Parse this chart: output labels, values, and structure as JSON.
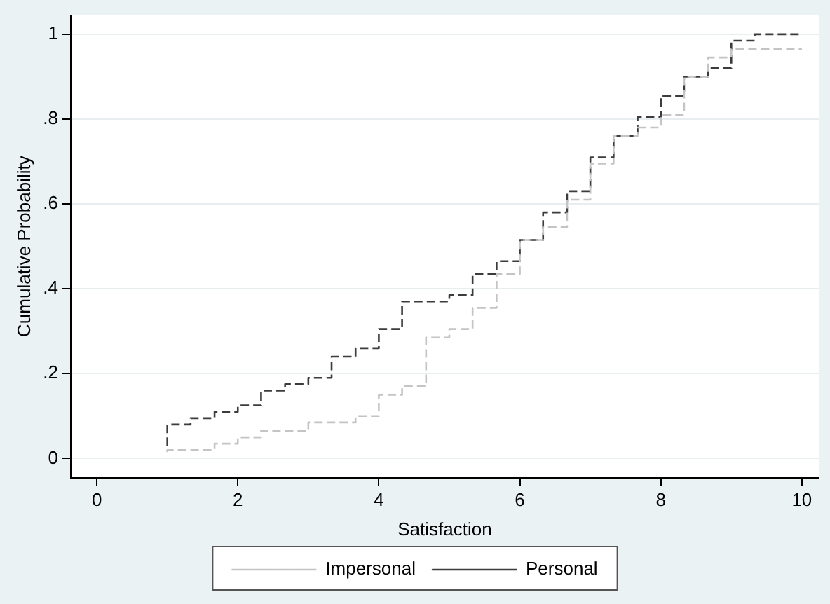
{
  "chart_data": {
    "type": "step",
    "xlabel": "Satisfaction",
    "ylabel": "Cumulative Probability",
    "xlim": [
      -0.37,
      10.24
    ],
    "xticks": [
      0,
      2,
      4,
      6,
      8,
      10
    ],
    "ylim": [
      -0.045,
      1.045
    ],
    "yticks": [
      0,
      {
        "value": 0.2,
        "label": ".2"
      },
      {
        "value": 0.4,
        "label": ".4"
      },
      {
        "value": 0.6,
        "label": ".6"
      },
      {
        "value": 0.8,
        "label": ".8"
      },
      1
    ],
    "grid": "y",
    "legend": "bottom",
    "line_style": "dashed",
    "marker": "none",
    "series": [
      {
        "name": "Impersonal",
        "color": "#c4c4c4",
        "x": [
          1,
          1.67,
          2,
          2.33,
          3,
          3.67,
          4,
          4.33,
          4.67,
          5,
          5.33,
          5.67,
          6,
          6.33,
          6.67,
          7,
          7.33,
          7.67,
          8,
          8.33,
          8.67,
          9,
          9.33,
          10
        ],
        "values": [
          0.015,
          0.02,
          0.035,
          0.05,
          0.065,
          0.085,
          0.1,
          0.15,
          0.17,
          0.285,
          0.305,
          0.355,
          0.435,
          0.515,
          0.545,
          0.61,
          0.695,
          0.76,
          0.78,
          0.81,
          0.9,
          0.945,
          0.965,
          0.965
        ]
      },
      {
        "name": "Personal",
        "color": "#3c3c3c",
        "x": [
          1,
          1.33,
          1.67,
          2,
          2.33,
          2.67,
          3,
          3.33,
          3.67,
          4,
          4.33,
          5,
          5.33,
          5.67,
          6,
          6.33,
          6.67,
          7,
          7.33,
          7.67,
          8,
          8.33,
          8.67,
          9,
          9.33,
          10
        ],
        "values": [
          0.03,
          0.08,
          0.095,
          0.11,
          0.125,
          0.16,
          0.175,
          0.19,
          0.24,
          0.26,
          0.305,
          0.37,
          0.385,
          0.435,
          0.465,
          0.515,
          0.58,
          0.63,
          0.71,
          0.76,
          0.805,
          0.855,
          0.9,
          0.92,
          0.985,
          1
        ]
      }
    ]
  }
}
